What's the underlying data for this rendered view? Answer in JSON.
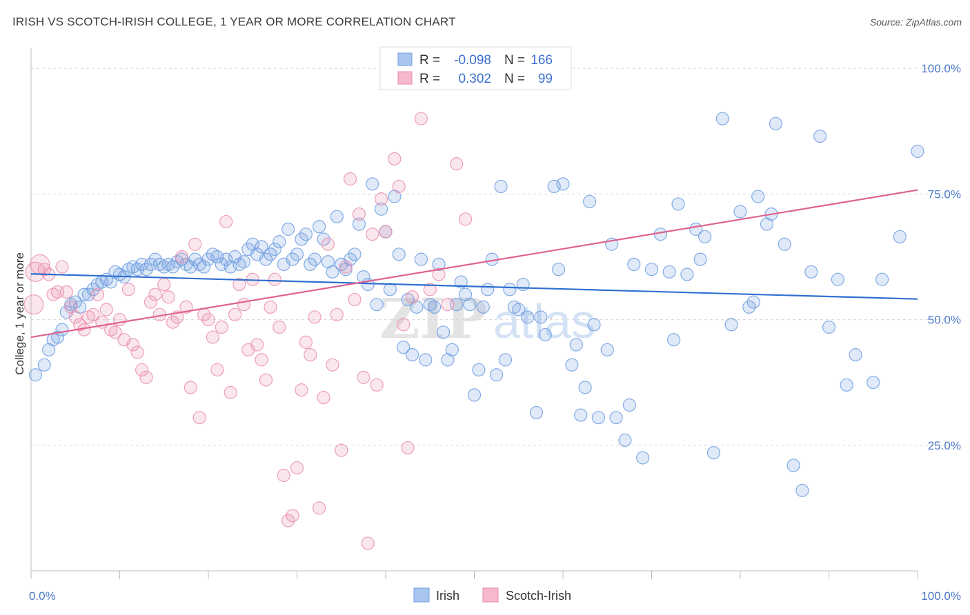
{
  "title": "IRISH VS SCOTCH-IRISH COLLEGE, 1 YEAR OR MORE CORRELATION CHART",
  "source": "Source: ZipAtlas.com",
  "watermark": {
    "zip": "ZIP",
    "atlas": "atlas"
  },
  "legend": {
    "r_label": "R =",
    "n_label": "N =",
    "rows": [
      {
        "r": "-0.098",
        "n": "166",
        "color": "#a8c6f0",
        "stroke": "#6f9de0"
      },
      {
        "r": "0.302",
        "n": "99",
        "color": "#f6b8cc",
        "stroke": "#e98aa8"
      }
    ]
  },
  "bottom_legend": [
    "Irish",
    "Scotch-Irish"
  ],
  "chart_data": {
    "type": "scatter",
    "xlabel": "",
    "ylabel": "College, 1 year or more",
    "xlim": [
      0,
      100
    ],
    "ylim": [
      0,
      104
    ],
    "x_tick_labels": [
      "0.0%",
      "100.0%"
    ],
    "y_ticks": [
      25,
      50,
      75,
      100
    ],
    "y_tick_labels": [
      "25.0%",
      "50.0%",
      "75.0%",
      "100.0%"
    ],
    "grid": true,
    "colors": {
      "irish": "#6f9de0",
      "irish_line": "#2f6fd0",
      "scotch": "#ea8fae",
      "scotch_line": "#e0628e"
    },
    "series": [
      {
        "name": "Irish",
        "trend": [
          [
            0,
            59.1
          ],
          [
            100,
            54.1
          ]
        ],
        "points": [
          [
            0.5,
            39
          ],
          [
            1.5,
            41
          ],
          [
            2,
            44
          ],
          [
            2.5,
            46
          ],
          [
            3,
            46.5
          ],
          [
            3.5,
            48
          ],
          [
            4,
            51.5
          ],
          [
            4.5,
            53
          ],
          [
            5,
            53.5
          ],
          [
            5.5,
            52.5
          ],
          [
            6,
            55
          ],
          [
            6.5,
            55
          ],
          [
            7,
            56
          ],
          [
            7.5,
            57
          ],
          [
            8,
            57.5
          ],
          [
            8.5,
            58
          ],
          [
            9,
            57.5
          ],
          [
            9.5,
            59.5
          ],
          [
            10,
            59
          ],
          [
            10.5,
            58.5
          ],
          [
            11,
            60
          ],
          [
            11.5,
            60.5
          ],
          [
            12,
            60
          ],
          [
            12.5,
            61
          ],
          [
            13,
            60
          ],
          [
            13.5,
            61
          ],
          [
            14,
            62
          ],
          [
            14.5,
            61
          ],
          [
            15,
            60.5
          ],
          [
            15.5,
            61
          ],
          [
            16,
            60.5
          ],
          [
            16.5,
            61.5
          ],
          [
            17,
            62
          ],
          [
            17.5,
            61
          ],
          [
            18,
            60.5
          ],
          [
            18.5,
            62
          ],
          [
            19,
            61
          ],
          [
            19.5,
            60.5
          ],
          [
            20,
            62
          ],
          [
            20.5,
            63
          ],
          [
            21,
            62.5
          ],
          [
            21.5,
            61
          ],
          [
            22,
            62
          ],
          [
            22.5,
            60.5
          ],
          [
            23,
            62.5
          ],
          [
            23.5,
            61
          ],
          [
            24,
            61.5
          ],
          [
            24.5,
            64
          ],
          [
            25,
            65
          ],
          [
            25.5,
            63
          ],
          [
            26,
            64.5
          ],
          [
            26.5,
            62
          ],
          [
            27,
            63
          ],
          [
            27.5,
            64
          ],
          [
            28,
            65.5
          ],
          [
            28.5,
            61
          ],
          [
            29,
            68
          ],
          [
            29.5,
            62
          ],
          [
            30,
            63
          ],
          [
            30.5,
            66
          ],
          [
            31,
            67
          ],
          [
            31.5,
            61
          ],
          [
            32,
            62
          ],
          [
            32.5,
            68.5
          ],
          [
            33,
            66
          ],
          [
            33.5,
            61.5
          ],
          [
            34,
            59.5
          ],
          [
            34.5,
            70.5
          ],
          [
            35,
            61
          ],
          [
            35.5,
            60
          ],
          [
            36,
            62
          ],
          [
            36.5,
            63
          ],
          [
            37,
            69
          ],
          [
            37.5,
            58.5
          ],
          [
            38,
            57
          ],
          [
            38.5,
            77
          ],
          [
            39,
            53
          ],
          [
            39.5,
            72
          ],
          [
            40,
            67.5
          ],
          [
            40.5,
            56
          ],
          [
            41,
            74.5
          ],
          [
            41.5,
            63
          ],
          [
            42,
            44.5
          ],
          [
            42.5,
            54
          ],
          [
            43,
            43
          ],
          [
            43.5,
            52.5
          ],
          [
            44,
            62
          ],
          [
            44.5,
            42
          ],
          [
            45,
            53
          ],
          [
            45.5,
            52.5
          ],
          [
            46,
            61
          ],
          [
            46.5,
            47.5
          ],
          [
            47,
            42
          ],
          [
            47.5,
            44
          ],
          [
            48,
            53
          ],
          [
            48.5,
            57.5
          ],
          [
            49,
            55
          ],
          [
            49.5,
            53
          ],
          [
            50,
            35
          ],
          [
            50.5,
            40
          ],
          [
            51,
            52.5
          ],
          [
            51.5,
            56
          ],
          [
            52,
            62
          ],
          [
            52.5,
            39
          ],
          [
            53,
            76.5
          ],
          [
            53.5,
            42
          ],
          [
            54,
            56
          ],
          [
            54.5,
            52.5
          ],
          [
            55,
            52
          ],
          [
            55.5,
            57
          ],
          [
            56,
            50.5
          ],
          [
            57,
            31.5
          ],
          [
            57.5,
            50.5
          ],
          [
            58,
            47
          ],
          [
            59,
            76.5
          ],
          [
            59.5,
            60
          ],
          [
            60,
            77
          ],
          [
            61,
            41
          ],
          [
            61.5,
            45
          ],
          [
            62,
            31
          ],
          [
            62.5,
            36.5
          ],
          [
            63,
            73.5
          ],
          [
            63.5,
            49
          ],
          [
            64,
            30.5
          ],
          [
            65,
            44
          ],
          [
            65.5,
            65
          ],
          [
            66,
            30.5
          ],
          [
            67,
            26
          ],
          [
            67.5,
            33
          ],
          [
            68,
            61
          ],
          [
            69,
            22.5
          ],
          [
            70,
            60
          ],
          [
            71,
            67
          ],
          [
            72,
            59.5
          ],
          [
            72.5,
            46
          ],
          [
            73,
            73
          ],
          [
            74,
            59
          ],
          [
            75,
            68
          ],
          [
            75.5,
            62
          ],
          [
            76,
            66.5
          ],
          [
            77,
            23.5
          ],
          [
            78,
            90
          ],
          [
            79,
            49
          ],
          [
            80,
            71.5
          ],
          [
            81,
            52.5
          ],
          [
            81.5,
            53.5
          ],
          [
            82,
            74.5
          ],
          [
            83,
            69
          ],
          [
            83.5,
            71
          ],
          [
            84,
            89
          ],
          [
            85,
            65
          ],
          [
            86,
            21
          ],
          [
            87,
            16
          ],
          [
            88,
            59.5
          ],
          [
            89,
            86.5
          ],
          [
            90,
            48.5
          ],
          [
            91,
            58
          ],
          [
            92,
            37
          ],
          [
            93,
            43
          ],
          [
            95,
            37.5
          ],
          [
            96,
            58
          ],
          [
            98,
            66.5
          ],
          [
            100,
            83.5
          ]
        ]
      },
      {
        "name": "Scotch-Irish",
        "trend": [
          [
            0,
            46.5
          ],
          [
            100,
            75.8
          ]
        ],
        "points": [
          [
            0.3,
            53
          ],
          [
            0.5,
            59.5
          ],
          [
            1,
            61
          ],
          [
            1.5,
            60
          ],
          [
            2,
            59
          ],
          [
            2.5,
            55
          ],
          [
            3,
            55.5
          ],
          [
            3.5,
            60.5
          ],
          [
            4,
            55.5
          ],
          [
            4.5,
            52.5
          ],
          [
            5,
            50.5
          ],
          [
            5.5,
            49
          ],
          [
            6,
            48
          ],
          [
            6.5,
            50.5
          ],
          [
            7,
            51
          ],
          [
            7.5,
            55
          ],
          [
            8,
            49.5
          ],
          [
            8.5,
            52
          ],
          [
            9,
            48
          ],
          [
            9.5,
            47.5
          ],
          [
            10,
            50
          ],
          [
            10.5,
            46
          ],
          [
            11,
            56
          ],
          [
            11.5,
            45
          ],
          [
            12,
            43.5
          ],
          [
            12.5,
            40
          ],
          [
            13,
            38.5
          ],
          [
            13.5,
            53.5
          ],
          [
            14,
            55
          ],
          [
            14.5,
            51
          ],
          [
            15,
            57
          ],
          [
            15.5,
            54.5
          ],
          [
            16,
            49.5
          ],
          [
            16.5,
            50.5
          ],
          [
            17,
            62.5
          ],
          [
            17.5,
            52.5
          ],
          [
            18,
            36.5
          ],
          [
            18.5,
            65
          ],
          [
            19,
            30.5
          ],
          [
            19.5,
            51
          ],
          [
            20,
            50
          ],
          [
            20.5,
            46.5
          ],
          [
            21,
            40
          ],
          [
            21.5,
            48.5
          ],
          [
            22,
            69.5
          ],
          [
            22.5,
            35.5
          ],
          [
            23,
            51
          ],
          [
            23.5,
            57
          ],
          [
            24,
            53
          ],
          [
            24.5,
            44
          ],
          [
            25,
            58
          ],
          [
            25.5,
            45
          ],
          [
            26,
            42
          ],
          [
            26.5,
            38
          ],
          [
            27,
            52.5
          ],
          [
            27.5,
            58
          ],
          [
            28,
            48.5
          ],
          [
            28.5,
            19
          ],
          [
            29,
            10
          ],
          [
            29.5,
            11
          ],
          [
            30,
            20.5
          ],
          [
            30.5,
            36
          ],
          [
            31,
            45.5
          ],
          [
            31.5,
            43
          ],
          [
            32,
            50.5
          ],
          [
            32.5,
            12.5
          ],
          [
            33,
            34.5
          ],
          [
            33.5,
            65
          ],
          [
            34,
            41
          ],
          [
            34.5,
            51
          ],
          [
            35,
            24
          ],
          [
            35.5,
            60.5
          ],
          [
            36,
            78
          ],
          [
            36.5,
            54
          ],
          [
            37,
            71
          ],
          [
            37.5,
            38.5
          ],
          [
            38,
            5.5
          ],
          [
            38.5,
            67
          ],
          [
            39,
            37
          ],
          [
            39.5,
            74
          ],
          [
            40,
            67.5
          ],
          [
            41,
            82
          ],
          [
            41.5,
            76.5
          ],
          [
            42,
            49
          ],
          [
            42.5,
            24.5
          ],
          [
            43,
            54.5
          ],
          [
            44,
            90
          ],
          [
            45,
            56
          ],
          [
            46,
            59
          ],
          [
            47,
            53
          ],
          [
            48,
            81
          ],
          [
            49,
            70
          ],
          [
            50,
            100
          ],
          [
            51,
            100
          ],
          [
            52,
            100
          ],
          [
            53,
            98
          ]
        ]
      }
    ]
  }
}
